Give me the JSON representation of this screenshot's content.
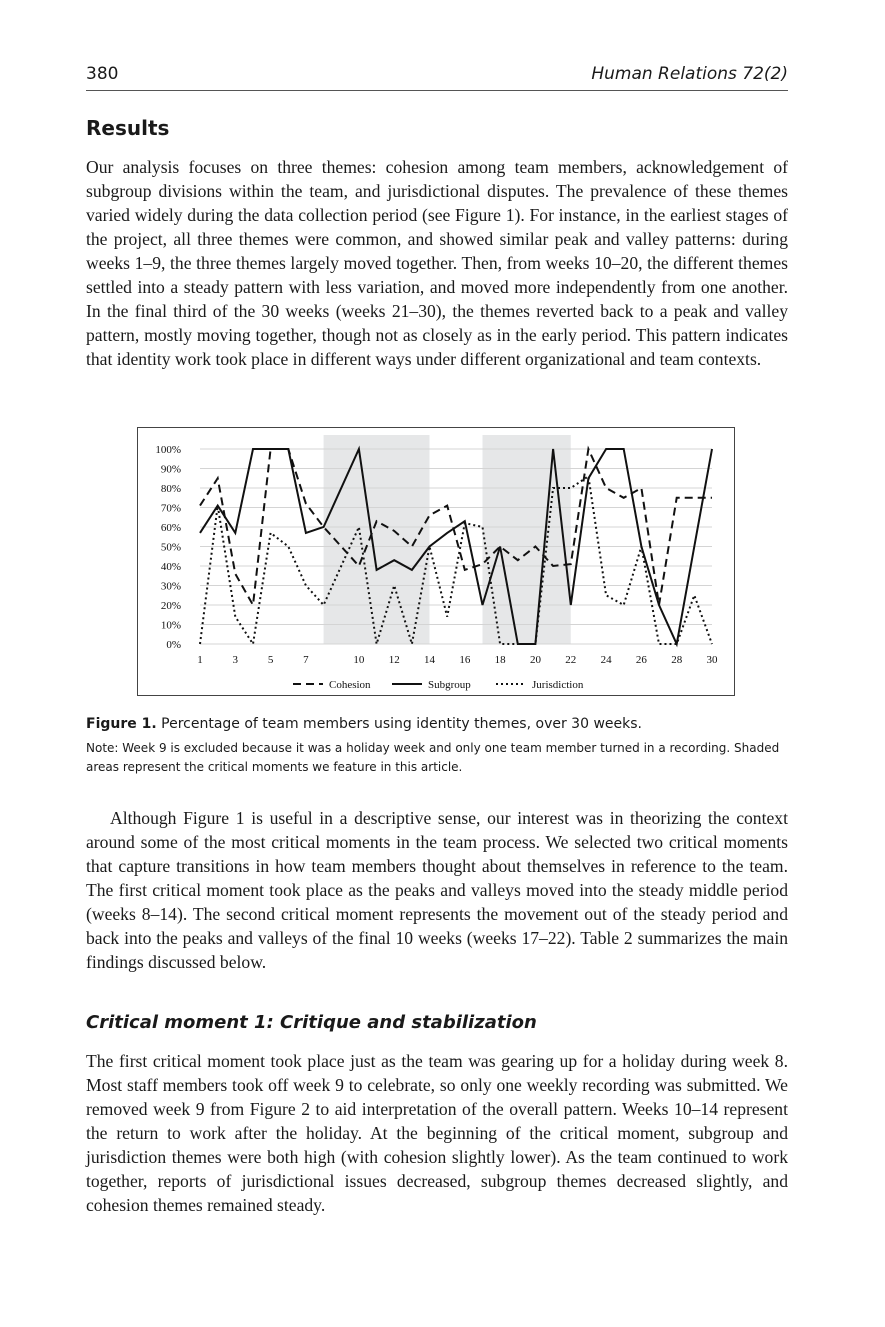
{
  "header": {
    "page_number": "380",
    "journal": "Human Relations 72(2)"
  },
  "section_title": "Results",
  "paragraph_1": "Our analysis focuses on three themes: cohesion among team members, acknowledgement of subgroup divisions within the team, and jurisdictional disputes. The prevalence of these themes varied widely during the data collection period (see Figure 1). For instance, in the earliest stages of the project, all three themes were common, and showed similar peak and valley patterns: during weeks 1–9, the three themes largely moved together. Then, from weeks 10–20, the different themes settled into a steady pattern with less variation, and moved more independently from one another. In the final third of the 30 weeks (weeks 21–30), the themes reverted back to a peak and valley pattern, mostly moving together, though not as closely as in the early period. This pattern indicates that identity work took place in different ways under different organizational and team contexts.",
  "figure": {
    "label": "Figure 1.",
    "caption": "Percentage of team members using identity themes, over 30 weeks.",
    "note": "Note: Week 9 is excluded because it was a holiday week and only one team member turned in a recording. Shaded areas represent the critical moments we feature in this article."
  },
  "chart_data": {
    "type": "line",
    "title": "",
    "xlabel": "",
    "ylabel": "",
    "ylim": [
      0,
      100
    ],
    "y_ticks": [
      "0%",
      "10%",
      "20%",
      "30%",
      "40%",
      "50%",
      "60%",
      "70%",
      "80%",
      "90%",
      "100%"
    ],
    "x_ticks": [
      "1",
      "3",
      "5",
      "7",
      "10",
      "12",
      "14",
      "16",
      "18",
      "20",
      "22",
      "24",
      "26",
      "28",
      "30"
    ],
    "weeks": [
      1,
      2,
      3,
      4,
      5,
      6,
      7,
      8,
      10,
      11,
      12,
      13,
      14,
      15,
      16,
      17,
      18,
      19,
      20,
      21,
      22,
      23,
      24,
      25,
      26,
      27,
      28,
      29,
      30
    ],
    "shaded_ranges": [
      [
        8,
        14
      ],
      [
        17,
        22
      ]
    ],
    "grid": true,
    "legend_position": "bottom",
    "series": [
      {
        "name": "Cohesion",
        "style": "dashed",
        "color": "#111111",
        "values": [
          71,
          85,
          36,
          20,
          100,
          100,
          72,
          60,
          40,
          63,
          58,
          50,
          66,
          71,
          38,
          41,
          50,
          43,
          50,
          40,
          41,
          100,
          80,
          75,
          80,
          20,
          75,
          75,
          75
        ]
      },
      {
        "name": "Subgroup",
        "style": "solid",
        "color": "#111111",
        "values": [
          57,
          71,
          57,
          100,
          100,
          100,
          57,
          60,
          100,
          38,
          43,
          38,
          50,
          57,
          63,
          20,
          50,
          0,
          0,
          100,
          20,
          85,
          100,
          100,
          50,
          20,
          0,
          50,
          100
        ]
      },
      {
        "name": "Jurisdiction",
        "style": "dotted",
        "color": "#111111",
        "values": [
          0,
          71,
          14,
          0,
          57,
          50,
          30,
          20,
          60,
          0,
          30,
          0,
          50,
          14,
          62,
          60,
          0,
          0,
          0,
          80,
          80,
          86,
          25,
          20,
          50,
          0,
          0,
          25,
          0
        ]
      }
    ]
  },
  "paragraph_2": "Although Figure 1 is useful in a descriptive sense, our interest was in theorizing the context around some of the most critical moments in the team process. We selected two critical moments that capture transitions in how team members thought about themselves in reference to the team. The first critical moment took place as the peaks and valleys moved into the steady middle period (weeks 8–14). The second critical moment represents the movement out of the steady period and back into the peaks and valleys of the final 10 weeks (weeks 17–22). Table 2 summarizes the main findings discussed below.",
  "subsection_title": "Critical moment 1: Critique and stabilization",
  "paragraph_3": "The first critical moment took place just as the team was gearing up for a holiday during week 8. Most staff members took off week 9 to celebrate, so only one weekly recording was submitted. We removed week 9 from Figure 2 to aid interpretation of the overall pattern. Weeks 10–14 represent the return to work after the holiday. At the beginning of the critical moment, subgroup and jurisdiction themes were both high (with cohesion slightly lower). As the team continued to work together, reports of jurisdictional issues decreased, subgroup themes decreased slightly, and cohesion themes remained steady."
}
